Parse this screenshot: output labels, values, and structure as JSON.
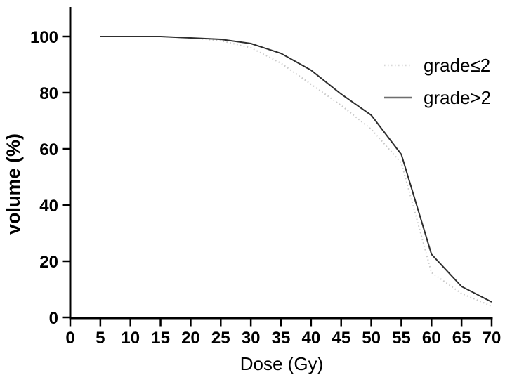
{
  "figure": {
    "background": "#ffffff",
    "axis_color": "#000000"
  },
  "chart_data": {
    "type": "line",
    "title": "",
    "xlabel": "Dose (Gy)",
    "ylabel": "volume (%)",
    "xlim": [
      0,
      70
    ],
    "ylim": [
      0,
      100
    ],
    "x_ticks": [
      0,
      5,
      10,
      15,
      20,
      25,
      30,
      35,
      40,
      45,
      50,
      55,
      60,
      65,
      70
    ],
    "y_ticks": [
      0,
      20,
      40,
      60,
      80,
      100
    ],
    "grid": false,
    "legend_position": "upper-right-inside",
    "x": [
      5,
      10,
      15,
      20,
      25,
      30,
      35,
      40,
      45,
      50,
      55,
      60,
      65,
      70
    ],
    "series": [
      {
        "name": "grade≤2",
        "line_style": "dotted",
        "color": "#c9c9c9",
        "legend_color": "#d8d8d8",
        "values": [
          100,
          100,
          100,
          99.5,
          98.5,
          96,
          90.5,
          83,
          75.5,
          67,
          55,
          16,
          8.5,
          4
        ]
      },
      {
        "name": "grade>2",
        "line_style": "solid",
        "color": "#2e2e2e",
        "legend_color": "#6e6e6e",
        "values": [
          100,
          100,
          100,
          99.5,
          99,
          97.5,
          94,
          88,
          79.5,
          72,
          58,
          22.5,
          11,
          5.5
        ]
      }
    ]
  }
}
